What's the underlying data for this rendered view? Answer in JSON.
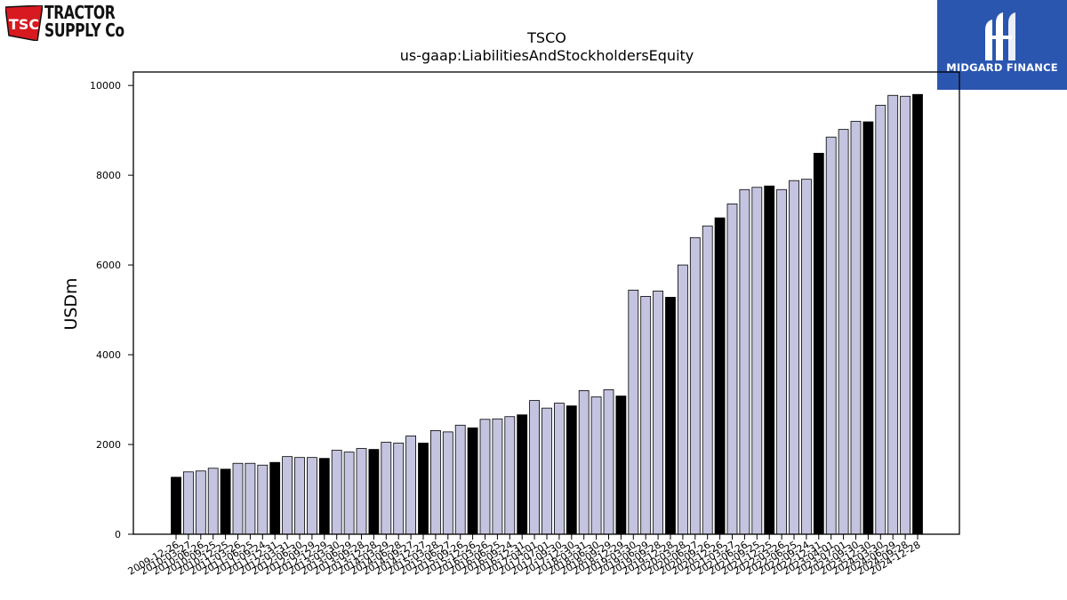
{
  "logos": {
    "tsc": {
      "badge_text": "TSC",
      "line1": "TRACTOR",
      "line2": "SUPPLY Co",
      "badge_color": "#d71920"
    },
    "midgard": {
      "text": "MIDGARD FINANCE",
      "bg_color": "#2b56b0"
    }
  },
  "chart_data": {
    "type": "bar",
    "title": "TSCO",
    "subtitle": "us-gaap:LiabilitiesAndStockholdersEquity",
    "ylabel": "USDm",
    "xlabel": "",
    "ylim": [
      0,
      10300
    ],
    "yticks": [
      0,
      2000,
      4000,
      6000,
      8000,
      10000
    ],
    "grid": false,
    "colors": {
      "quarterly": "#c4c4e0",
      "annual": "#000000",
      "edge": "#000000"
    },
    "categories": [
      "2009-12-26",
      "2010-03-27",
      "2010-06-26",
      "2010-09-25",
      "2010-12-25",
      "2011-03-26",
      "2011-06-25",
      "2011-09-24",
      "2011-12-31",
      "2012-03-31",
      "2012-06-30",
      "2012-09-29",
      "2012-12-29",
      "2013-03-30",
      "2013-06-29",
      "2013-09-28",
      "2013-12-28",
      "2014-03-29",
      "2014-06-28",
      "2014-09-27",
      "2014-12-27",
      "2015-03-28",
      "2015-06-27",
      "2015-09-26",
      "2015-12-26",
      "2016-03-26",
      "2016-06-25",
      "2016-09-24",
      "2016-12-31",
      "2017-04-01",
      "2017-07-01",
      "2017-09-30",
      "2017-12-30",
      "2018-03-31",
      "2018-06-30",
      "2018-09-29",
      "2018-12-29",
      "2019-03-30",
      "2019-06-29",
      "2019-09-28",
      "2019-12-28",
      "2020-03-28",
      "2020-06-27",
      "2020-09-26",
      "2020-12-26",
      "2021-03-27",
      "2021-06-26",
      "2021-09-25",
      "2021-12-25",
      "2022-03-26",
      "2022-06-25",
      "2022-09-24",
      "2022-12-31",
      "2023-04-01",
      "2023-07-01",
      "2023-09-30",
      "2023-12-30",
      "2024-03-30",
      "2024-06-29",
      "2024-09-28",
      "2024-12-28"
    ],
    "values": [
      1270,
      1390,
      1410,
      1470,
      1450,
      1580,
      1580,
      1540,
      1600,
      1730,
      1710,
      1710,
      1690,
      1870,
      1830,
      1910,
      1890,
      2050,
      2030,
      2190,
      2030,
      2310,
      2280,
      2430,
      2370,
      2560,
      2570,
      2620,
      2660,
      2980,
      2810,
      2920,
      2860,
      3200,
      3060,
      3220,
      3080,
      5440,
      5300,
      5420,
      5280,
      6000,
      6610,
      6870,
      7050,
      7360,
      7680,
      7730,
      7760,
      7680,
      7880,
      7910,
      8490,
      8850,
      9020,
      9200,
      9190,
      9560,
      9780,
      9760,
      9800
    ],
    "annual": [
      true,
      false,
      false,
      false,
      true,
      false,
      false,
      false,
      true,
      false,
      false,
      false,
      true,
      false,
      false,
      false,
      true,
      false,
      false,
      false,
      true,
      false,
      false,
      false,
      true,
      false,
      false,
      false,
      true,
      false,
      false,
      false,
      true,
      false,
      false,
      false,
      true,
      false,
      false,
      false,
      true,
      false,
      false,
      false,
      true,
      false,
      false,
      false,
      true,
      false,
      false,
      false,
      true,
      false,
      false,
      false,
      true,
      false,
      false,
      false,
      true
    ]
  }
}
